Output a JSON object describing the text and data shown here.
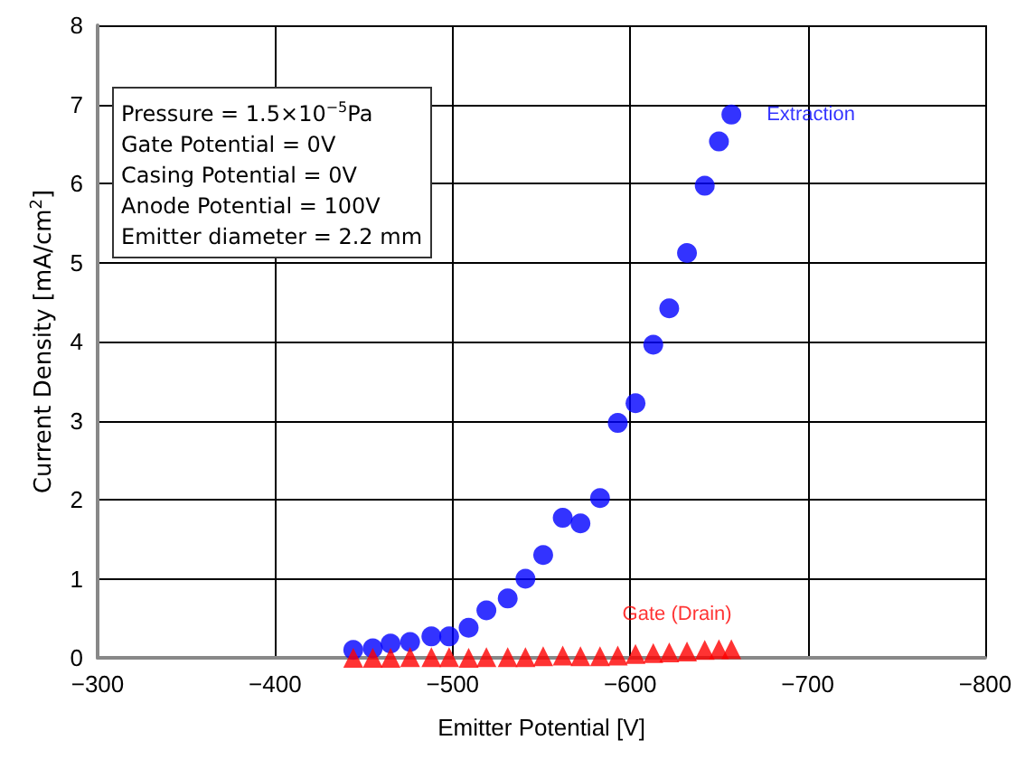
{
  "chart_data": {
    "type": "scatter",
    "xlabel": "Emitter Potential [V]",
    "ylabel": "Current Density [mA/cm$^{2}$]",
    "annotations": [
      "Pressure = 1.5×10$^{−5}$Pa\nGate Potential = 0V\nCasing Potential = 0V\nAnode Potential = 100V\nEmitter diameter = 2.2 mm"
    ],
    "x": [
      -444,
      -455,
      -465,
      -476,
      -488,
      -498,
      -509,
      -519,
      -531,
      -541,
      -551,
      -562,
      -572,
      -583,
      -593,
      -603,
      -613,
      -622,
      -632,
      -642,
      -650,
      -657
    ],
    "series": [
      {
        "name": "Extraction",
        "color": "#0000ff",
        "marker": "circle",
        "values": [
          0.1,
          0.12,
          0.18,
          0.2,
          0.27,
          0.27,
          0.38,
          0.6,
          0.75,
          1.0,
          1.3,
          1.77,
          1.7,
          2.02,
          2.97,
          3.22,
          3.96,
          4.42,
          5.12,
          5.97,
          6.53,
          6.87
        ]
      },
      {
        "name": "Gate (Drain)",
        "color": "#ff0000",
        "marker": "triangle",
        "values": [
          0,
          0,
          0,
          0.01,
          0.01,
          0.01,
          0,
          0.01,
          0.01,
          0.01,
          0.02,
          0.03,
          0.02,
          0.02,
          0.03,
          0.05,
          0.06,
          0.07,
          0.08,
          0.1,
          0.11,
          0.11
        ]
      }
    ],
    "xlim": [
      -300,
      -800
    ],
    "xticks": [
      {
        "value": -300,
        "label": "−300"
      },
      {
        "value": -400,
        "label": "−400"
      },
      {
        "value": -500,
        "label": "−500"
      },
      {
        "value": -600,
        "label": "−600"
      },
      {
        "value": -700,
        "label": "−700"
      },
      {
        "value": -800,
        "label": "−800"
      }
    ],
    "ylim": [
      0,
      8
    ],
    "yticks": [
      0,
      1,
      2,
      3,
      4,
      5,
      6,
      7,
      8
    ],
    "grid": true,
    "legend": false
  }
}
